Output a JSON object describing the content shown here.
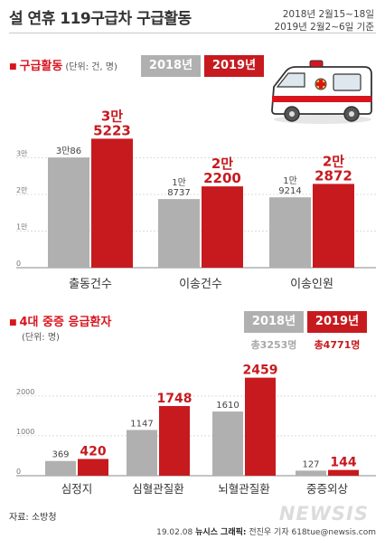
{
  "header": {
    "title": "설 연휴 119구급차 구급활동",
    "date_line1": "2018년 2월15~18일",
    "date_line2": "2019년 2월2~6일 기준"
  },
  "section1": {
    "title": "구급활동",
    "unit": "(단위: 건, 명)"
  },
  "section2": {
    "title": "4대 중증 응급환자",
    "unit": "(단위: 명)",
    "total_2018": "총3253명",
    "total_2019": "총4771명"
  },
  "legend": {
    "y2018": "2018년",
    "y2019": "2019년"
  },
  "colors": {
    "y2018": "#b0b0b0",
    "y2019": "#c71a1f",
    "accent": "#d9141e"
  },
  "chart_data": [
    {
      "type": "bar",
      "categories": [
        "출동건수",
        "이송건수",
        "이송인원"
      ],
      "series": [
        {
          "name": "2018년",
          "values": [
            30086,
            18737,
            19214
          ],
          "labels": [
            "3만86",
            "1만\n8737",
            "1만\n9214"
          ]
        },
        {
          "name": "2019년",
          "values": [
            35223,
            22200,
            22872
          ],
          "labels": [
            "3만\n5223",
            "2만\n2200",
            "2만\n2872"
          ]
        }
      ],
      "yticks": [
        0,
        10000,
        20000,
        30000
      ],
      "ytick_labels": [
        "0",
        "1만",
        "2만",
        "3만"
      ],
      "ylim": [
        0,
        40000
      ]
    },
    {
      "type": "bar",
      "categories": [
        "심정지",
        "심혈관질환",
        "뇌혈관질환",
        "중증외상"
      ],
      "series": [
        {
          "name": "2018년",
          "values": [
            369,
            1147,
            1610,
            127
          ],
          "labels": [
            "369",
            "1147",
            "1610",
            "127"
          ]
        },
        {
          "name": "2019년",
          "values": [
            420,
            1748,
            2459,
            144
          ],
          "labels": [
            "420",
            "1748",
            "2459",
            "144"
          ]
        }
      ],
      "yticks": [
        0,
        1000,
        2000
      ],
      "ytick_labels": [
        "0",
        "1000",
        "2000"
      ],
      "ylim": [
        0,
        2700
      ]
    }
  ],
  "footer": {
    "source": "자료: 소방청",
    "credit_date": "19.02.08",
    "credit_brand": "뉴시스 그래픽:",
    "credit_author": "전진우 기자 618tue@newsis.com",
    "watermark": "NEWSIS"
  }
}
